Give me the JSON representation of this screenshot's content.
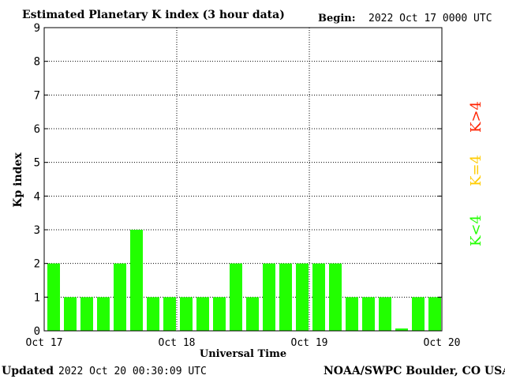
{
  "header": {
    "title": "Estimated Planetary K index (3 hour data)",
    "begin_label": "Begin:",
    "begin_value": "2022 Oct 17 0000 UTC"
  },
  "footer": {
    "updated_label": "Updated",
    "updated_value": "2022 Oct 20 00:30:09 UTC",
    "source": "NOAA/SWPC Boulder, CO USA"
  },
  "legend": {
    "low": "K<4",
    "mid": "K=4",
    "high": "K>4"
  },
  "colors": {
    "low": "#22ff00",
    "mid": "#ffcc00",
    "high": "#ff2200",
    "grid": "#000000",
    "border": "#000000"
  },
  "chart_data": {
    "type": "bar",
    "title": "Estimated Planetary K index (3 hour data)",
    "xlabel": "Universal Time",
    "ylabel": "Kp index",
    "ylim": [
      0,
      9
    ],
    "yticks": [
      "0",
      "1",
      "2",
      "3",
      "4",
      "5",
      "6",
      "7",
      "8",
      "9"
    ],
    "xticks": [
      "Oct 17",
      "Oct 18",
      "Oct 19",
      "Oct 20"
    ],
    "bar_interval": "3 hour",
    "grid": true,
    "values": [
      2,
      1,
      1,
      1,
      2,
      3,
      1,
      1,
      1,
      1,
      1,
      2,
      1,
      2,
      2,
      2,
      2,
      2,
      1,
      1,
      1,
      0.07,
      1,
      1
    ]
  }
}
